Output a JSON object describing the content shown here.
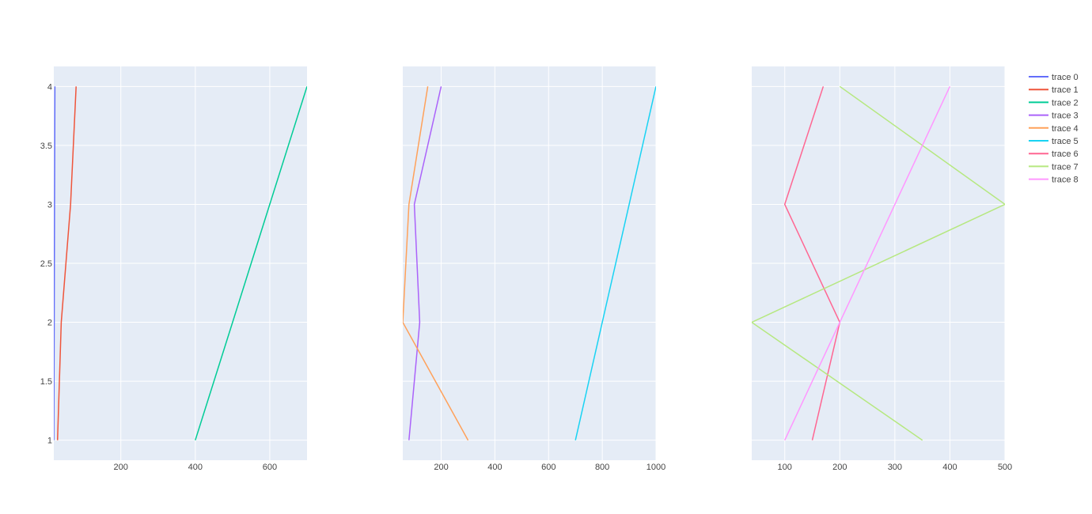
{
  "chart_data": {
    "type": "line",
    "grid": true,
    "legend_position": "top-right",
    "y_axis": {
      "range": [
        0.83,
        4.17
      ],
      "ticks": [
        1,
        1.5,
        2,
        2.5,
        3,
        3.5,
        4
      ],
      "tick_labels": [
        "1",
        "1.5",
        "2",
        "2.5",
        "3",
        "3.5",
        "4"
      ]
    },
    "subplots": [
      {
        "x_range": [
          20,
          700
        ],
        "x_ticks": [
          200,
          400,
          600
        ],
        "x_tick_labels": [
          "200",
          "400",
          "600"
        ],
        "series": [
          "trace 0",
          "trace 1",
          "trace 2"
        ]
      },
      {
        "x_range": [
          57,
          1000
        ],
        "x_ticks": [
          200,
          400,
          600,
          800,
          1000
        ],
        "x_tick_labels": [
          "200",
          "400",
          "600",
          "800",
          "1000"
        ],
        "series": [
          "trace 3",
          "trace 4",
          "trace 5"
        ]
      },
      {
        "x_range": [
          40,
          500
        ],
        "x_ticks": [
          100,
          200,
          300,
          400,
          500
        ],
        "x_tick_labels": [
          "100",
          "200",
          "300",
          "400",
          "500"
        ],
        "series": [
          "trace 6",
          "trace 7",
          "trace 8"
        ]
      }
    ],
    "series": [
      {
        "name": "trace 0",
        "subplot": 0,
        "color": "#636efa",
        "x": [
          20,
          21,
          22,
          23
        ],
        "y": [
          1,
          2,
          3,
          4
        ]
      },
      {
        "name": "trace 1",
        "subplot": 0,
        "color": "#EF553B",
        "x": [
          30,
          40,
          65,
          80
        ],
        "y": [
          1,
          2,
          3,
          4
        ]
      },
      {
        "name": "trace 2",
        "subplot": 0,
        "color": "#00cc96",
        "x": [
          400,
          500,
          600,
          700
        ],
        "y": [
          1,
          2,
          3,
          4
        ]
      },
      {
        "name": "trace 3",
        "subplot": 1,
        "color": "#ab63fa",
        "x": [
          80,
          120,
          100,
          200
        ],
        "y": [
          1,
          2,
          3,
          4
        ]
      },
      {
        "name": "trace 4",
        "subplot": 1,
        "color": "#FFA15A",
        "x": [
          300,
          57,
          80,
          150
        ],
        "y": [
          1,
          2,
          3,
          4
        ]
      },
      {
        "name": "trace 5",
        "subplot": 1,
        "color": "#19d3f3",
        "x": [
          700,
          800,
          900,
          1000
        ],
        "y": [
          1,
          2,
          3,
          4
        ]
      },
      {
        "name": "trace 6",
        "subplot": 2,
        "color": "#FF6692",
        "x": [
          150,
          200,
          100,
          170
        ],
        "y": [
          1,
          2,
          3,
          4
        ]
      },
      {
        "name": "trace 7",
        "subplot": 2,
        "color": "#B6E880",
        "x": [
          350,
          40,
          500,
          200
        ],
        "y": [
          1,
          2,
          3,
          4
        ]
      },
      {
        "name": "trace 8",
        "subplot": 2,
        "color": "#FF97FF",
        "x": [
          100,
          200,
          300,
          400
        ],
        "y": [
          1,
          2,
          3,
          4
        ]
      }
    ]
  }
}
